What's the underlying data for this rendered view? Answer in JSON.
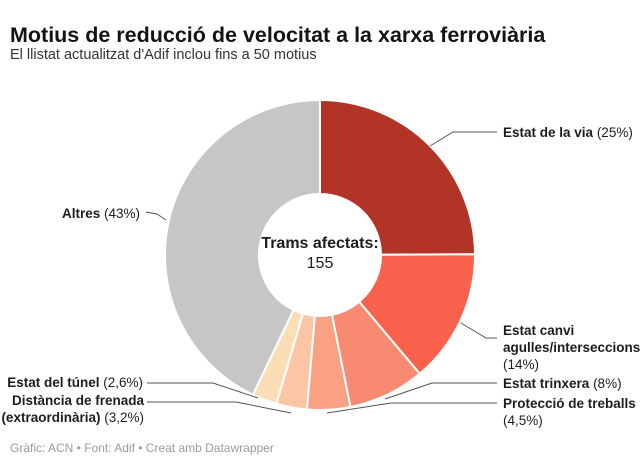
{
  "header": {
    "title": "Motius de reducció de velocitat a la xarxa ferroviària",
    "subtitle": "El llistat actualitzat d'Adif inclou fins a 50 motius"
  },
  "chart_data": {
    "type": "pie",
    "subtype": "donut",
    "title": "Motius de reducció de velocitat a la xarxa ferroviària",
    "center_label": "Trams afectats:",
    "center_value": "155",
    "total_trams": 155,
    "legend_position": "outside-labels",
    "segments": [
      {
        "label": "Estat de la via",
        "value": 25,
        "pct_label": "(25%)",
        "color": "#b13426"
      },
      {
        "label": "Estat canvi agulles/interseccions",
        "value": 14,
        "pct_label": "(14%)",
        "color": "#f9614c"
      },
      {
        "label": "Estat trinxera",
        "value": 8,
        "pct_label": "(8%)",
        "color": "#f98a72"
      },
      {
        "label": "Protecció de treballs",
        "value": 4.5,
        "pct_label": "(4,5%)",
        "color": "#faa183"
      },
      {
        "label": "Distància de frenada (extraordinària)",
        "value": 3.2,
        "pct_label": "(3,2%)",
        "color": "#fcc5a3"
      },
      {
        "label": "Estat del túnel",
        "value": 2.6,
        "pct_label": "(2,6%)",
        "color": "#fcdeb6"
      },
      {
        "label": "Altres",
        "value": 43,
        "pct_label": "(43%)",
        "color": "#c6c6c6"
      }
    ]
  },
  "footer": {
    "text": "Gràfic: ACN • Font: Adif • Creat amb Datawrapper"
  }
}
